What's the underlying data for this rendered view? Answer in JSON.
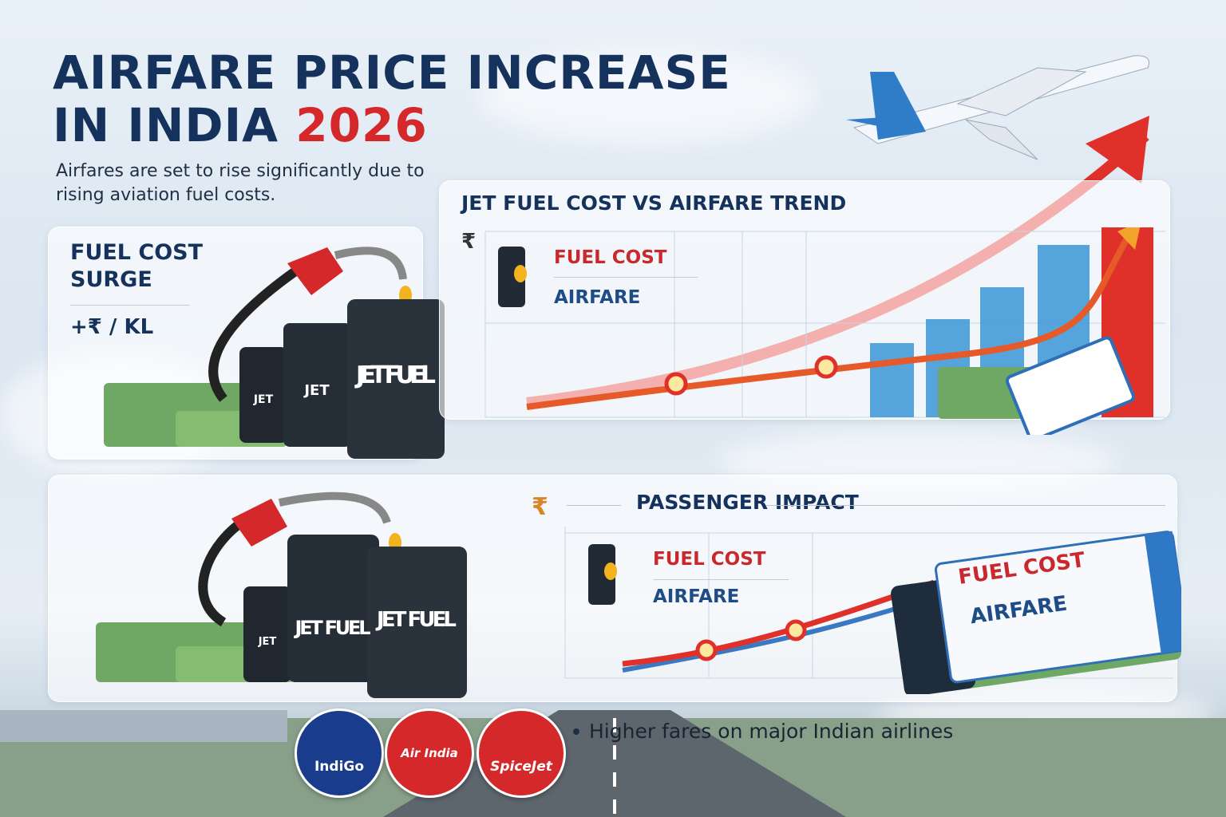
{
  "header": {
    "title_line1": "AIRFARE PRICE INCREASE",
    "title_line2": "IN INDIA",
    "title_year": "2026",
    "subtitle": "Airfares are set to rise significantly due to rising aviation fuel costs."
  },
  "fuel_panel": {
    "title_line1": "FUEL COST",
    "title_line2": "SURGE",
    "value": "+₹ / KL",
    "barrel_labels": [
      "JET",
      "JET FUEL",
      "JET FUEL"
    ]
  },
  "trend_chart": {
    "title": "JET FUEL COST VS AIRFARE TREND",
    "currency_symbol": "₹",
    "legend": {
      "fuel": "FUEL COST",
      "airfare": "AIRFARE",
      "barrel_tag": "no"
    }
  },
  "impact_panel": {
    "title": "PASSENGER IMPACT",
    "currency_symbol": "₹",
    "legend": {
      "fuel": "FUEL COST",
      "airfare": "AIRFARE",
      "barrel_tag": "TO"
    },
    "barrel_labels": [
      "JET",
      "JET FUEL",
      "JET FUEL"
    ],
    "ticket": {
      "fuel": "FUEL COST",
      "airfare": "AIRFARE"
    }
  },
  "footer": {
    "note": "Higher fares on major Indian airlines",
    "airlines": [
      {
        "name": "IndiGo",
        "color": "#1a3c8c"
      },
      {
        "name": "Air India",
        "color": "#d4282a"
      },
      {
        "name": "SpiceJet",
        "color": "#d4282a"
      }
    ]
  },
  "colors": {
    "navy": "#14325c",
    "accent_red": "#d4282a",
    "airfare_blue": "#1d4c86",
    "bar_blue": "#3b95d6"
  }
}
